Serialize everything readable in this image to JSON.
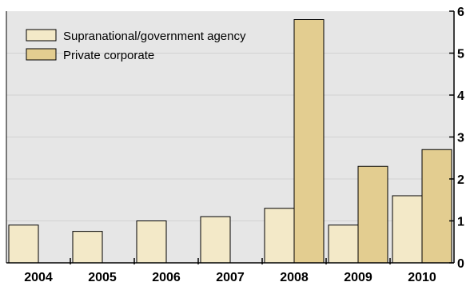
{
  "chart_data": {
    "type": "bar",
    "categories": [
      "2004",
      "2005",
      "2006",
      "2007",
      "2008",
      "2009",
      "2010"
    ],
    "series": [
      {
        "name": "Supranational/government agency",
        "color": "#f3e9c8",
        "values": [
          0.9,
          0.75,
          1.0,
          1.1,
          1.3,
          0.9,
          1.6
        ]
      },
      {
        "name": "Private corporate",
        "color": "#e3cd90",
        "values": [
          0,
          0,
          0,
          0,
          5.8,
          2.3,
          2.7
        ]
      }
    ],
    "y_ticks": [
      "0",
      "1",
      "2",
      "3",
      "4",
      "5",
      "6"
    ],
    "ylim": [
      0,
      6
    ],
    "axis_side": "right",
    "legend_position": "top-left",
    "background_color": "#e6e6e6"
  }
}
